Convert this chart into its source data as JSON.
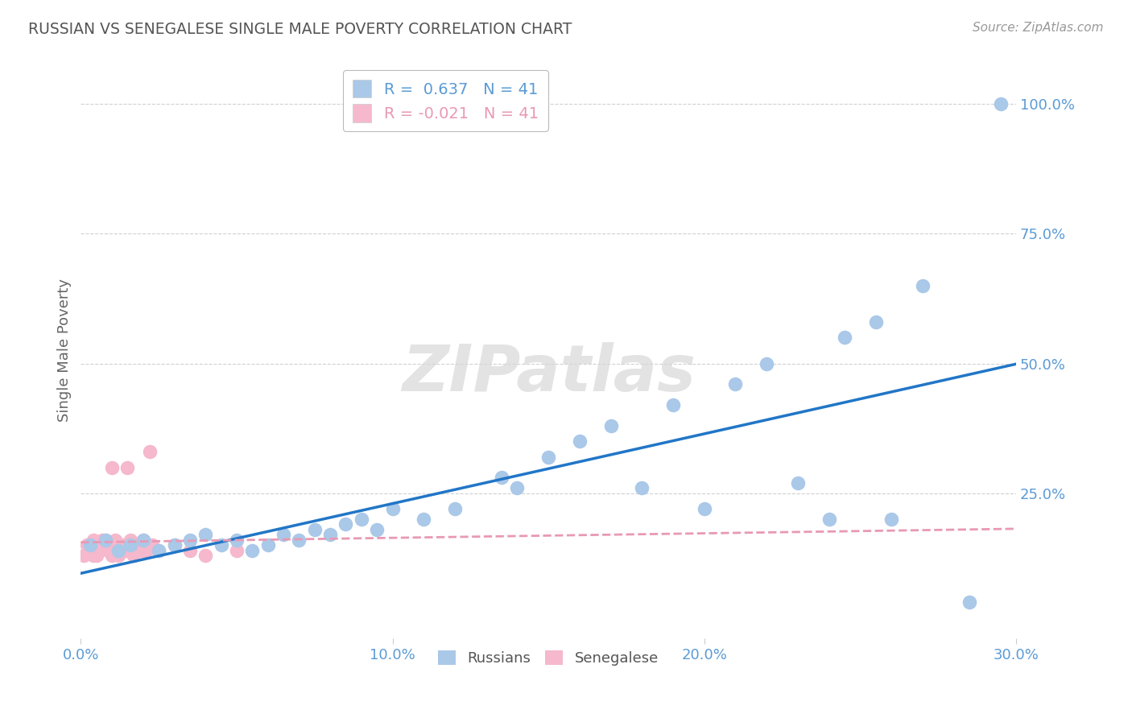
{
  "title": "RUSSIAN VS SENEGALESE SINGLE MALE POVERTY CORRELATION CHART",
  "source": "Source: ZipAtlas.com",
  "ylabel": "Single Male Poverty",
  "xlabel_ticks": [
    "0.0%",
    "10.0%",
    "20.0%",
    "30.0%"
  ],
  "xlabel_vals": [
    0.0,
    10.0,
    20.0,
    30.0
  ],
  "ylabel_vals": [
    0,
    25,
    50,
    75,
    100
  ],
  "ylabel_labels": [
    "25.0%",
    "50.0%",
    "75.0%",
    "100.0%"
  ],
  "xlim": [
    0,
    30
  ],
  "ylim": [
    -3,
    108
  ],
  "russian_R": 0.637,
  "senegalese_R": -0.021,
  "N": 41,
  "watermark": "ZIPatlas",
  "russian_color": "#aac8e8",
  "russian_line_color": "#2176c7",
  "senegalese_color": "#f5b8cc",
  "senegalese_line_color": "#e899b4",
  "russians_x": [
    0.3,
    0.8,
    1.2,
    1.6,
    2.0,
    2.5,
    3.0,
    3.5,
    4.0,
    4.5,
    5.0,
    5.5,
    6.0,
    6.5,
    7.0,
    7.5,
    8.0,
    8.5,
    9.0,
    9.5,
    10.0,
    11.0,
    12.0,
    13.5,
    14.0,
    15.0,
    16.0,
    17.0,
    18.0,
    19.0,
    20.0,
    21.0,
    22.0,
    23.0,
    24.0,
    24.5,
    25.5,
    26.0,
    27.0,
    28.5,
    29.5
  ],
  "russians_y": [
    15,
    16,
    14,
    15,
    16,
    14,
    15,
    16,
    17,
    15,
    16,
    14,
    15,
    17,
    16,
    18,
    17,
    19,
    20,
    18,
    22,
    20,
    22,
    28,
    26,
    32,
    35,
    38,
    26,
    42,
    22,
    46,
    50,
    27,
    20,
    55,
    58,
    20,
    65,
    4,
    100
  ],
  "senegalese_x": [
    0.1,
    0.2,
    0.3,
    0.4,
    0.5,
    0.5,
    0.6,
    0.7,
    0.8,
    0.9,
    1.0,
    1.0,
    1.1,
    1.2,
    1.2,
    1.3,
    1.4,
    1.5,
    1.5,
    1.6,
    1.7,
    1.8,
    1.9,
    2.0,
    2.0,
    2.1,
    2.2,
    2.3,
    2.5,
    3.0,
    3.5,
    4.0,
    5.0,
    1.5,
    2.0,
    0.8,
    1.0,
    0.6,
    0.3,
    0.4,
    0.5
  ],
  "senegalese_y": [
    13,
    15,
    14,
    16,
    13,
    15,
    14,
    16,
    15,
    14,
    15,
    13,
    16,
    14,
    13,
    15,
    14,
    30,
    14,
    16,
    13,
    15,
    14,
    15,
    16,
    14,
    33,
    15,
    14,
    15,
    14,
    13,
    14,
    15,
    14,
    16,
    30,
    15,
    14,
    13,
    15
  ],
  "background_color": "#ffffff",
  "grid_color": "#d0d0d0",
  "title_color": "#555555",
  "axis_label_color": "#666666",
  "tick_label_color": "#5b9bd5",
  "legend_R_color_russian": "#5b9bd5",
  "legend_R_color_senegalese": "#e899b4",
  "legend_N_color": "#5b9bd5"
}
